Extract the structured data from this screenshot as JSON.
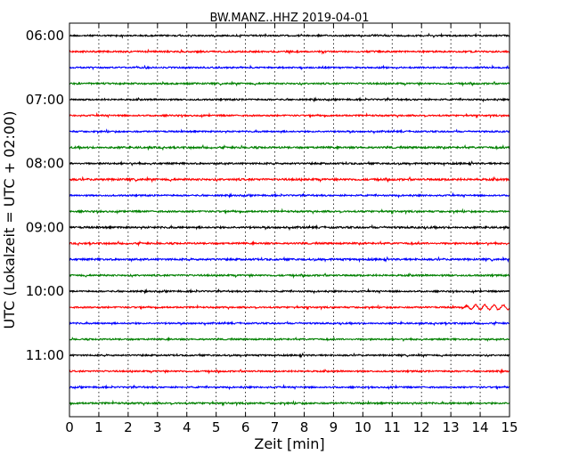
{
  "chart_data": {
    "type": "line",
    "title": "BW.MANZ..HHZ 2019-04-01",
    "xlabel": "Zeit  [min]",
    "ylabel": "UTC (Lokalzeit = UTC + 02:00)",
    "xlim": [
      0,
      15
    ],
    "x_ticks": [
      "0",
      "1",
      "2",
      "3",
      "4",
      "5",
      "6",
      "7",
      "8",
      "9",
      "10",
      "11",
      "12",
      "13",
      "14",
      "15"
    ],
    "y_ticks": [
      "06:00",
      "07:00",
      "08:00",
      "09:00",
      "10:00",
      "11:00"
    ],
    "trace_interval_min": 15,
    "grid_x": "dotted vertical at each minute",
    "colors": [
      "#000000",
      "#ff0000",
      "#0000ff",
      "#008000"
    ],
    "series": [
      {
        "start": "06:00",
        "color": "#000000",
        "amplitude": 1.0
      },
      {
        "start": "06:15",
        "color": "#ff0000",
        "amplitude": 1.1
      },
      {
        "start": "06:30",
        "color": "#0000ff",
        "amplitude": 1.0
      },
      {
        "start": "06:45",
        "color": "#008000",
        "amplitude": 1.1
      },
      {
        "start": "07:00",
        "color": "#000000",
        "amplitude": 1.0
      },
      {
        "start": "07:15",
        "color": "#ff0000",
        "amplitude": 1.0
      },
      {
        "start": "07:30",
        "color": "#0000ff",
        "amplitude": 1.0
      },
      {
        "start": "07:45",
        "color": "#008000",
        "amplitude": 1.2
      },
      {
        "start": "08:00",
        "color": "#000000",
        "amplitude": 1.1
      },
      {
        "start": "08:15",
        "color": "#ff0000",
        "amplitude": 1.3
      },
      {
        "start": "08:30",
        "color": "#0000ff",
        "amplitude": 1.0
      },
      {
        "start": "08:45",
        "color": "#008000",
        "amplitude": 1.1
      },
      {
        "start": "09:00",
        "color": "#000000",
        "amplitude": 1.2
      },
      {
        "start": "09:15",
        "color": "#ff0000",
        "amplitude": 1.1
      },
      {
        "start": "09:30",
        "color": "#0000ff",
        "amplitude": 1.2
      },
      {
        "start": "09:45",
        "color": "#008000",
        "amplitude": 1.1
      },
      {
        "start": "10:00",
        "color": "#000000",
        "amplitude": 1.0
      },
      {
        "start": "10:15",
        "color": "#ff0000",
        "amplitude": 1.0,
        "event_start_min": 13.3
      },
      {
        "start": "10:30",
        "color": "#0000ff",
        "amplitude": 1.0
      },
      {
        "start": "10:45",
        "color": "#008000",
        "amplitude": 1.0
      },
      {
        "start": "11:00",
        "color": "#000000",
        "amplitude": 1.0
      },
      {
        "start": "11:15",
        "color": "#ff0000",
        "amplitude": 1.0
      },
      {
        "start": "11:30",
        "color": "#0000ff",
        "amplitude": 1.0
      },
      {
        "start": "11:45",
        "color": "#008000",
        "amplitude": 1.1
      }
    ]
  }
}
